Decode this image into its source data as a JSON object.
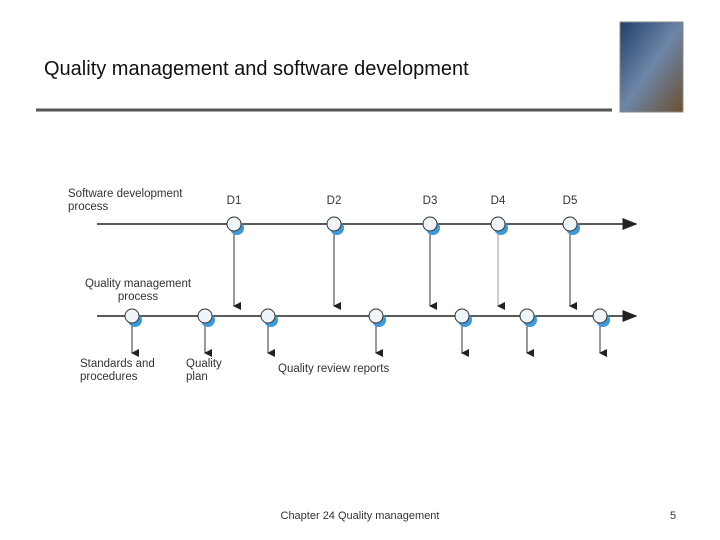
{
  "header": {
    "title": "Quality management and software development"
  },
  "diagram": {
    "process_top": [
      "Software development",
      "process"
    ],
    "deliverables": [
      "D1",
      "D2",
      "D3",
      "D4",
      "D5"
    ],
    "process_bottom": [
      "Quality management",
      "process"
    ],
    "outputs": [
      {
        "lines": [
          "Standards and",
          "procedures"
        ]
      },
      {
        "lines": [
          "Quality",
          "plan"
        ]
      },
      {
        "lines": [
          "Quality review reports"
        ]
      }
    ]
  },
  "footer": {
    "text": "Chapter 24 Quality management",
    "page": "5"
  }
}
